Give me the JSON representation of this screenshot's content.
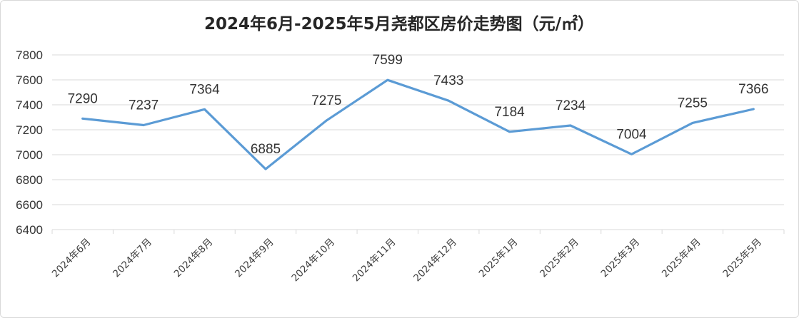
{
  "chart_data": {
    "type": "line",
    "title": "2024年6月-2025年5月尧都区房价走势图（元/㎡）",
    "categories": [
      "2024年6月",
      "2024年7月",
      "2024年8月",
      "2024年9月",
      "2024年10月",
      "2024年11月",
      "2024年12月",
      "2025年1月",
      "2025年2月",
      "2025年3月",
      "2025年4月",
      "2025年5月"
    ],
    "series": [
      {
        "values": [
          7290,
          7237,
          7364,
          6885,
          7275,
          7599,
          7433,
          7184,
          7234,
          7004,
          7255,
          7366
        ]
      }
    ],
    "data_labels": [
      "7290",
      "7237",
      "7364",
      "6885",
      "7275",
      "7599",
      "7433",
      "7184",
      "7234",
      "7004",
      "7255",
      "7366"
    ],
    "ylim": [
      6400,
      7800
    ],
    "yticks": [
      6400,
      6600,
      6800,
      7000,
      7200,
      7400,
      7600,
      7800
    ],
    "grid": true,
    "legend": "none",
    "line_color": "#5b9bd5"
  }
}
